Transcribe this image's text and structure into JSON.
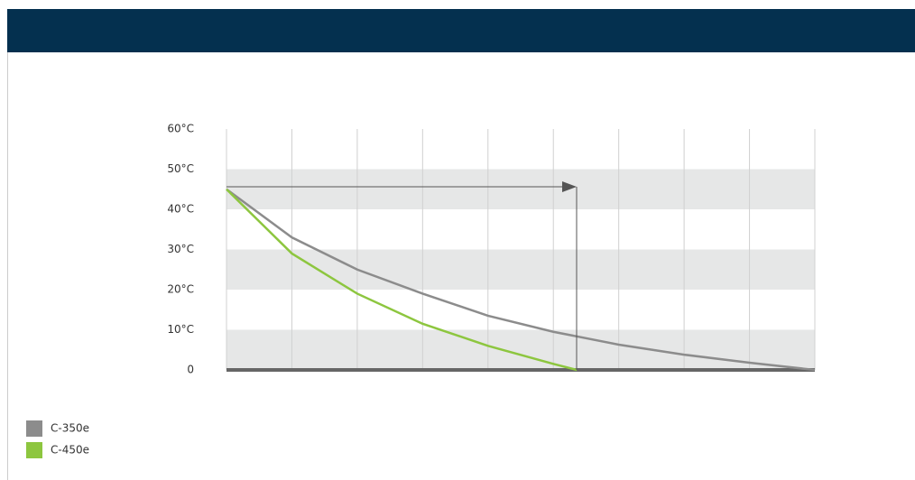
{
  "chart_data": {
    "type": "line",
    "x_lim_note_free": null,
    "xlim": [
      0,
      9
    ],
    "ylim": [
      0,
      60
    ],
    "yticks": [
      0,
      {
        "value": 10,
        "label": "10°C"
      },
      {
        "value": 20,
        "label": "20°C"
      },
      {
        "value": 30,
        "label": "30°C"
      },
      {
        "value": 40,
        "label": "40°C"
      },
      {
        "value": 50,
        "label": "50°C"
      },
      {
        "value": 60,
        "label": "60°C"
      }
    ],
    "series": [
      {
        "name": "C-350e",
        "color": "#8c8c8c",
        "x": [
          0,
          1,
          2,
          3,
          4,
          5,
          6,
          7,
          8,
          9
        ],
        "values": [
          45,
          33,
          25,
          19,
          13.5,
          9.5,
          6.3,
          3.8,
          1.8,
          0
        ]
      },
      {
        "name": "C-450e",
        "color": "#8dc63f",
        "x": [
          0,
          1,
          2,
          3,
          4,
          5,
          5.36
        ],
        "values": [
          45,
          29,
          19,
          11.5,
          6,
          1.5,
          0
        ]
      }
    ]
  }
}
